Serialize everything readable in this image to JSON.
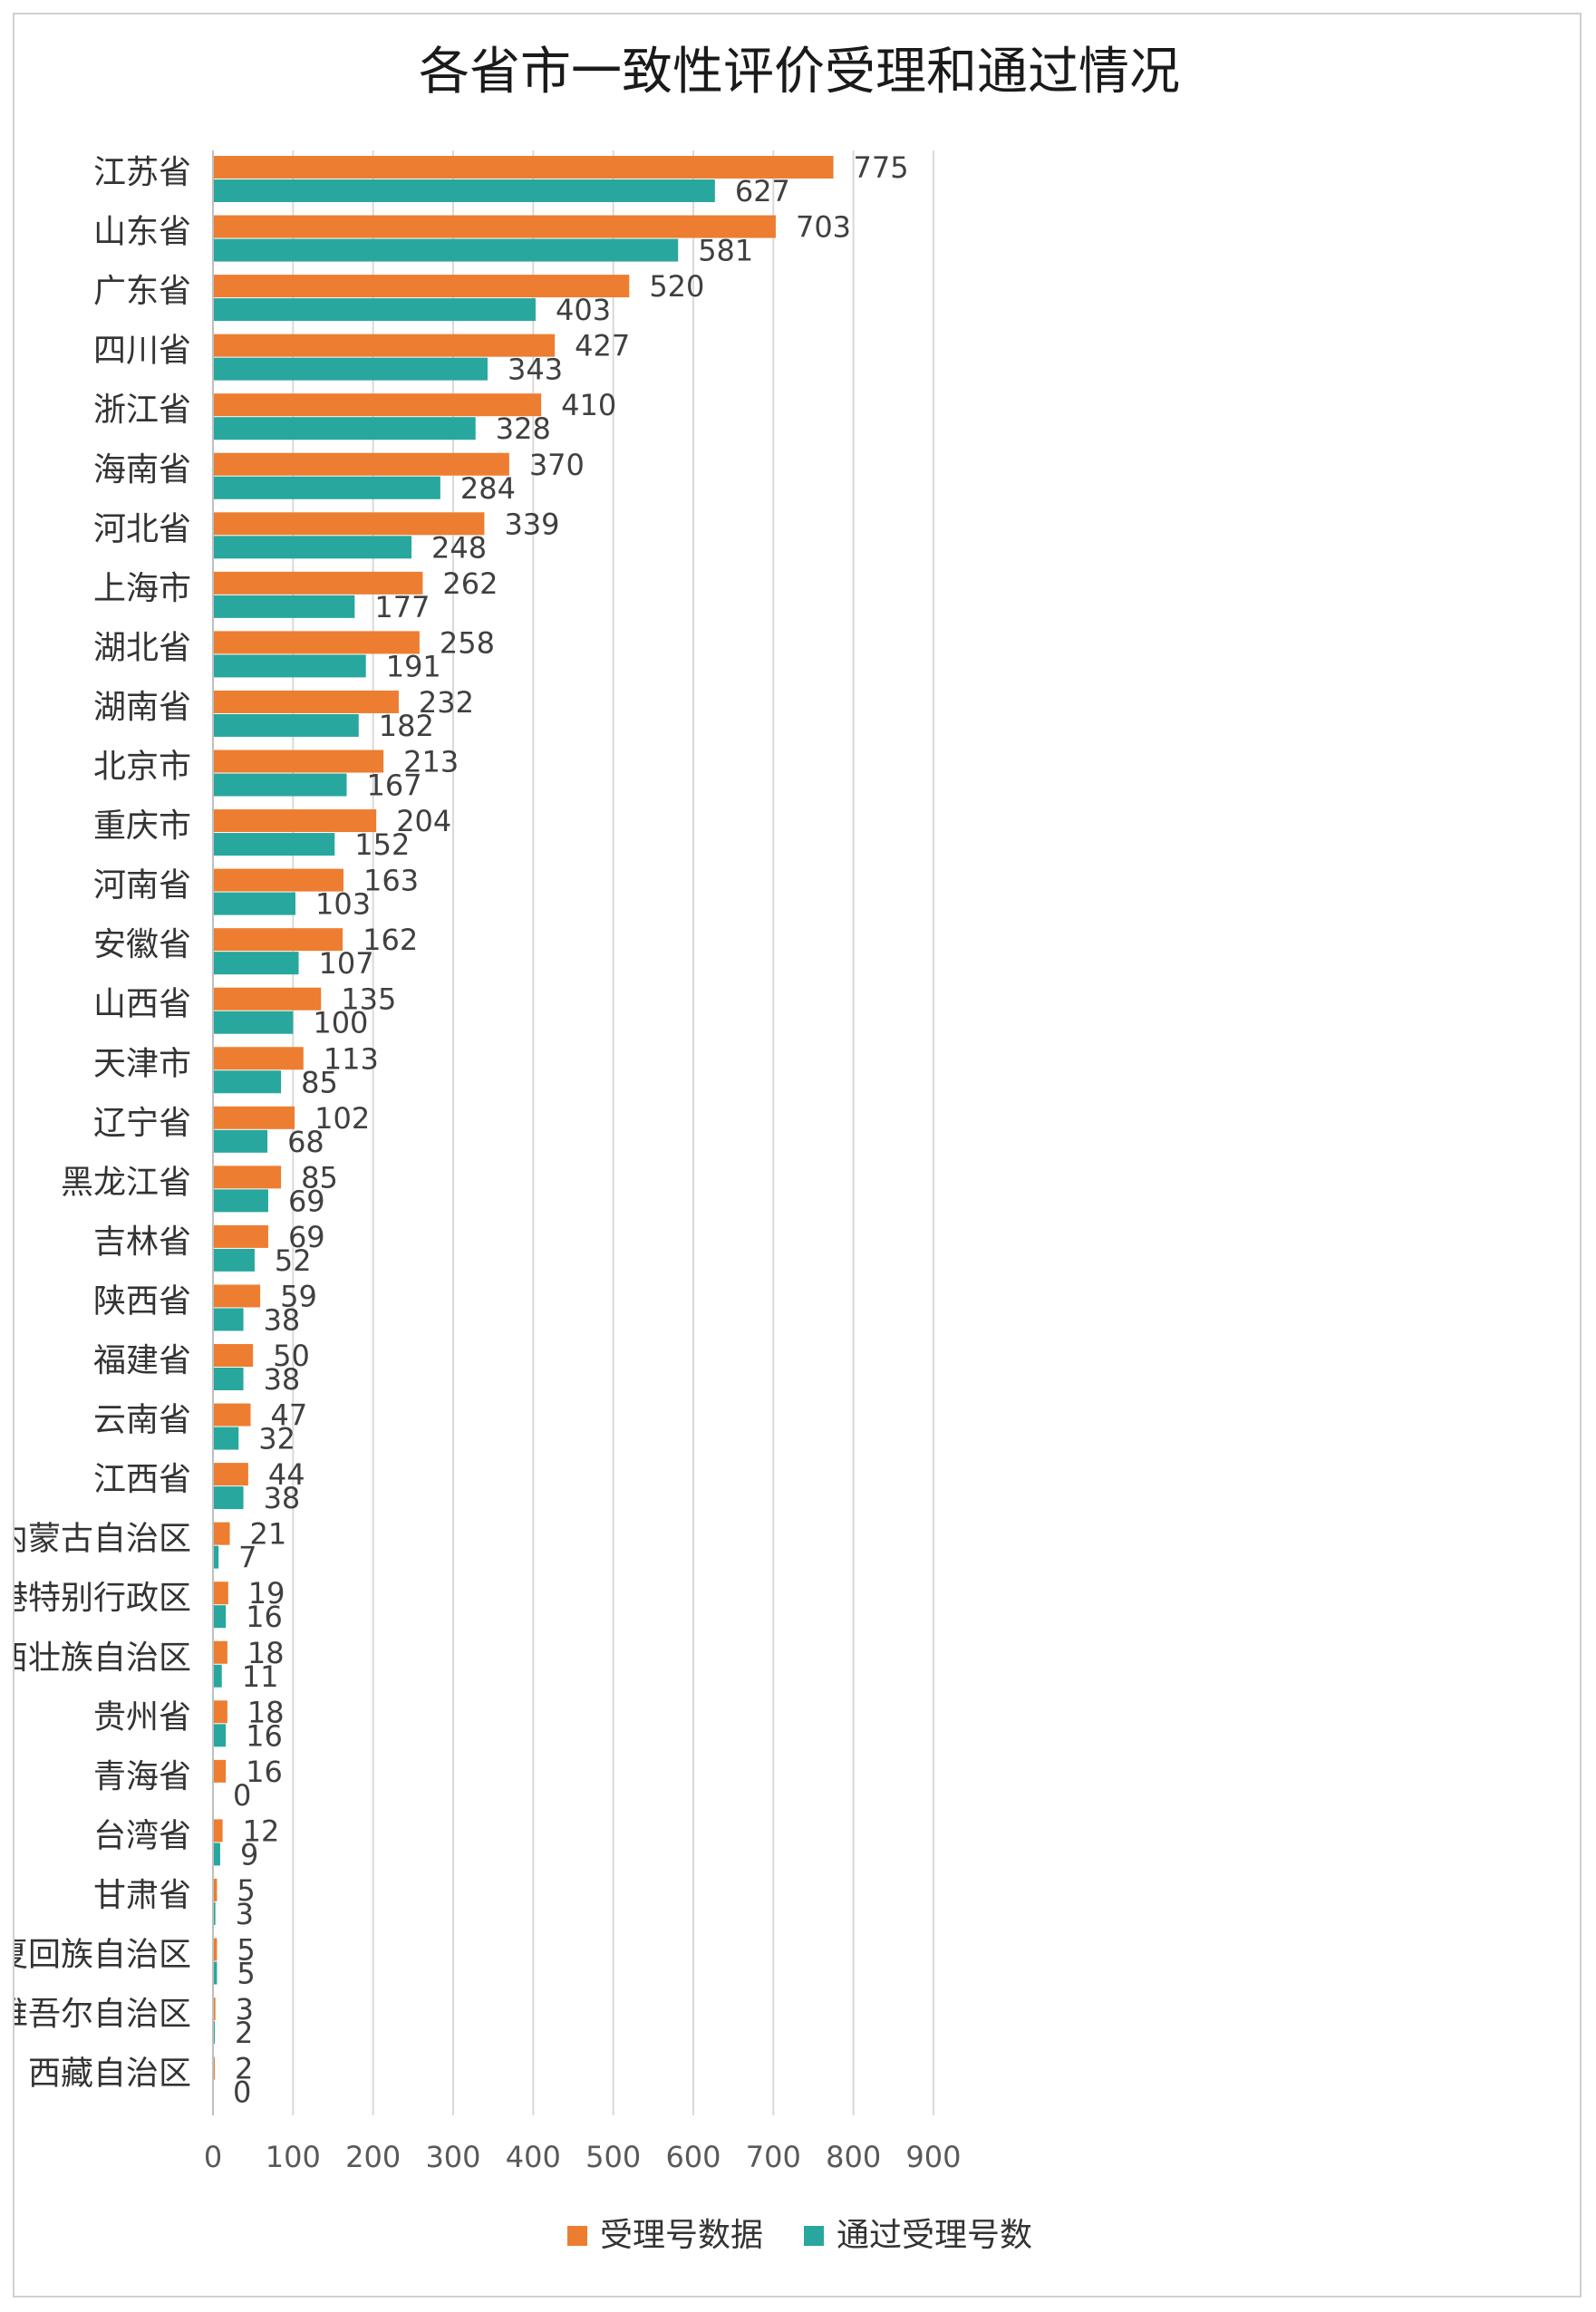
{
  "chart_data": {
    "type": "bar",
    "orientation": "horizontal",
    "title": "各省市一致性评价受理和通过情况",
    "categories": [
      "江苏省",
      "山东省",
      "广东省",
      "四川省",
      "浙江省",
      "海南省",
      "河北省",
      "上海市",
      "湖北省",
      "湖南省",
      "北京市",
      "重庆市",
      "河南省",
      "安徽省",
      "山西省",
      "天津市",
      "辽宁省",
      "黑龙江省",
      "吉林省",
      "陕西省",
      "福建省",
      "云南省",
      "江西省",
      "内蒙古自治区",
      "香港特别行政区",
      "广西壮族自治区",
      "贵州省",
      "青海省",
      "台湾省",
      "甘肃省",
      "宁夏回族自治区",
      "新疆维吾尔自治区",
      "西藏自治区"
    ],
    "series": [
      {
        "name": "受理号数据",
        "color": "#ED7D31",
        "values": [
          775,
          703,
          520,
          427,
          410,
          370,
          339,
          262,
          258,
          232,
          213,
          204,
          163,
          162,
          135,
          113,
          102,
          85,
          69,
          59,
          50,
          47,
          44,
          21,
          19,
          18,
          18,
          16,
          12,
          5,
          5,
          3,
          2
        ]
      },
      {
        "name": "通过受理号数",
        "color": "#27A79D",
        "values": [
          627,
          581,
          403,
          343,
          328,
          284,
          248,
          177,
          191,
          182,
          167,
          152,
          103,
          107,
          100,
          85,
          68,
          69,
          52,
          38,
          38,
          32,
          38,
          7,
          16,
          11,
          16,
          0,
          9,
          3,
          5,
          2,
          0
        ]
      }
    ],
    "xlim": [
      0,
      900
    ],
    "xticks": [
      0,
      100,
      200,
      300,
      400,
      500,
      600,
      700,
      800,
      900
    ],
    "grid": true,
    "legend_position": "bottom"
  }
}
